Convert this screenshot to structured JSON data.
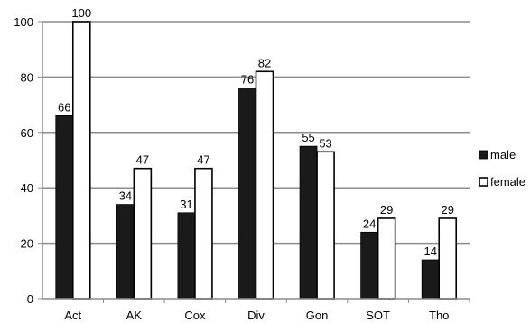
{
  "chart_data": {
    "type": "bar",
    "title": "",
    "xlabel": "",
    "ylabel": "",
    "categories": [
      "Act",
      "AK",
      "Cox",
      "Div",
      "Gon",
      "SOT",
      "Tho"
    ],
    "series": [
      {
        "name": "male",
        "values": [
          66,
          34,
          31,
          76,
          55,
          24,
          14
        ],
        "color": "#1a1a1a"
      },
      {
        "name": "female",
        "values": [
          100,
          47,
          47,
          82,
          53,
          29,
          29
        ],
        "color": "#ffffff"
      }
    ],
    "ylim": [
      0,
      100
    ],
    "yticks": [
      0,
      20,
      40,
      60,
      80,
      100
    ],
    "grid": true,
    "legend_position": "right"
  }
}
